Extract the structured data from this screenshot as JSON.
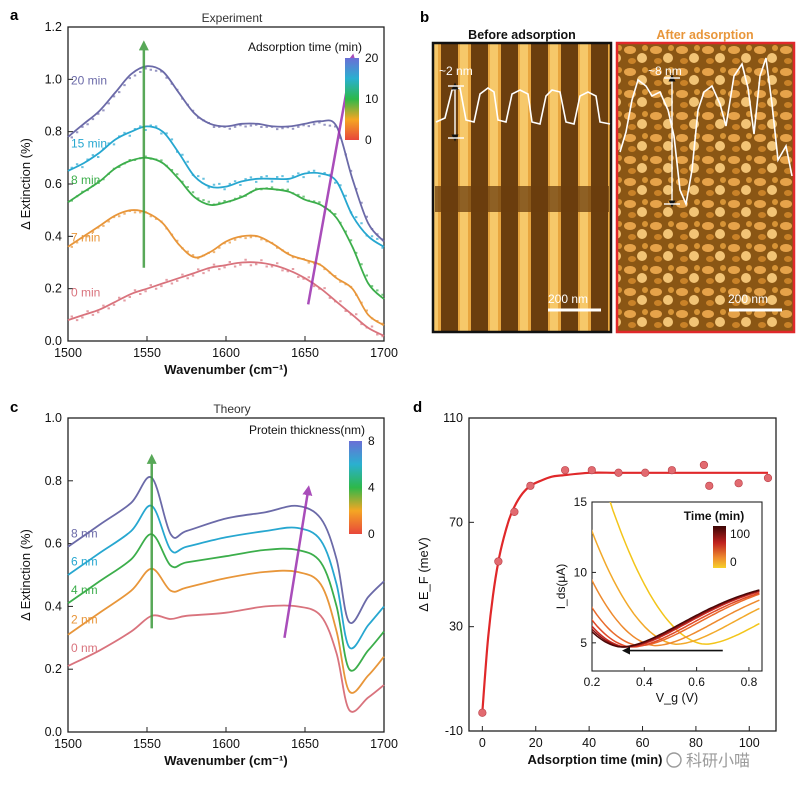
{
  "panels": {
    "a": "a",
    "b": "b",
    "c": "c",
    "d": "d"
  },
  "watermark": "科研小喵",
  "chart_data": [
    {
      "id": "a",
      "type": "line",
      "title": "Experiment",
      "xlabel": "Wavenumber (cm⁻¹)",
      "ylabel": "Δ Extinction (%)",
      "xlim": [
        1500,
        1700
      ],
      "ylim": [
        0,
        1.2
      ],
      "xticks": [
        1500,
        1550,
        1600,
        1650,
        1700
      ],
      "yticks": [
        0.0,
        0.2,
        0.4,
        0.6,
        0.8,
        1.0,
        1.2
      ],
      "colorbar": {
        "title": "Adsorption time (min)",
        "ticks": [
          "0",
          "10",
          "20"
        ],
        "colors": [
          "#e8473a",
          "#f5a623",
          "#2db84a",
          "#2ab0d0",
          "#6a6fd6"
        ]
      },
      "series": [
        {
          "name": "0 min",
          "color": "#d9737d",
          "label_y": 0.17,
          "x": [
            1500,
            1510,
            1520,
            1530,
            1540,
            1550,
            1560,
            1570,
            1580,
            1590,
            1600,
            1610,
            1620,
            1630,
            1640,
            1650,
            1660,
            1670,
            1680,
            1690,
            1700
          ],
          "y": [
            0.08,
            0.1,
            0.12,
            0.15,
            0.18,
            0.2,
            0.22,
            0.24,
            0.26,
            0.28,
            0.29,
            0.3,
            0.3,
            0.29,
            0.27,
            0.24,
            0.2,
            0.15,
            0.1,
            0.05,
            0.02
          ]
        },
        {
          "name": "7 min",
          "color": "#e8963a",
          "label_y": 0.38,
          "x": [
            1500,
            1510,
            1520,
            1530,
            1540,
            1550,
            1560,
            1570,
            1580,
            1590,
            1600,
            1610,
            1620,
            1630,
            1640,
            1650,
            1660,
            1670,
            1680,
            1690,
            1700
          ],
          "y": [
            0.36,
            0.4,
            0.44,
            0.48,
            0.5,
            0.49,
            0.45,
            0.37,
            0.32,
            0.34,
            0.38,
            0.4,
            0.4,
            0.37,
            0.33,
            0.31,
            0.29,
            0.24,
            0.2,
            0.1,
            0.06
          ]
        },
        {
          "name": "8 min",
          "color": "#3cae4b",
          "label_y": 0.6,
          "x": [
            1500,
            1510,
            1520,
            1530,
            1540,
            1550,
            1560,
            1570,
            1580,
            1590,
            1600,
            1610,
            1620,
            1630,
            1640,
            1650,
            1660,
            1670,
            1680,
            1690,
            1700
          ],
          "y": [
            0.53,
            0.57,
            0.61,
            0.66,
            0.69,
            0.7,
            0.68,
            0.62,
            0.55,
            0.52,
            0.53,
            0.55,
            0.58,
            0.58,
            0.57,
            0.54,
            0.52,
            0.47,
            0.36,
            0.22,
            0.16
          ]
        },
        {
          "name": "15 min",
          "color": "#27a7d0",
          "label_y": 0.74,
          "x": [
            1500,
            1510,
            1520,
            1530,
            1540,
            1550,
            1560,
            1570,
            1580,
            1590,
            1600,
            1610,
            1620,
            1630,
            1640,
            1650,
            1660,
            1670,
            1680,
            1690,
            1700
          ],
          "y": [
            0.65,
            0.68,
            0.72,
            0.77,
            0.8,
            0.82,
            0.8,
            0.72,
            0.63,
            0.59,
            0.59,
            0.61,
            0.62,
            0.62,
            0.62,
            0.64,
            0.64,
            0.61,
            0.48,
            0.4,
            0.36
          ]
        },
        {
          "name": "20 min",
          "color": "#6b6aa8",
          "label_y": 0.98,
          "x": [
            1500,
            1510,
            1520,
            1530,
            1540,
            1550,
            1560,
            1570,
            1580,
            1590,
            1600,
            1610,
            1620,
            1630,
            1640,
            1650,
            1660,
            1670,
            1680,
            1690,
            1700
          ],
          "y": [
            0.78,
            0.83,
            0.88,
            0.95,
            1.02,
            1.05,
            1.03,
            0.95,
            0.87,
            0.83,
            0.82,
            0.83,
            0.83,
            0.82,
            0.82,
            0.83,
            0.84,
            0.82,
            0.62,
            0.45,
            0.38
          ]
        }
      ],
      "annotations": {
        "arrow_green": [
          1548,
          0.28,
          1548,
          1.13
        ],
        "arrow_purple": [
          1652,
          0.14,
          1680,
          1.08
        ]
      }
    },
    {
      "id": "b",
      "type": "image",
      "panels": [
        {
          "title": "Before adsorption",
          "scale": "200 nm",
          "height_label": "~2 nm",
          "border": "#111111",
          "title_color": "#111111"
        },
        {
          "title": "After adsorption",
          "scale": "200 nm",
          "height_label": "~8 nm",
          "border": "#e0282a",
          "title_color": "#e8963a"
        }
      ]
    },
    {
      "id": "c",
      "type": "line",
      "title": "Theory",
      "xlabel": "Wavenumber (cm⁻¹)",
      "ylabel": "Δ Extinction (%)",
      "xlim": [
        1500,
        1700
      ],
      "ylim": [
        0,
        1.0
      ],
      "xticks": [
        1500,
        1550,
        1600,
        1650,
        1700
      ],
      "yticks": [
        0.0,
        0.2,
        0.4,
        0.6,
        0.8,
        1.0
      ],
      "colorbar": {
        "title": "Protein thickness(nm)",
        "ticks": [
          "0",
          "4",
          "8"
        ],
        "colors": [
          "#e8473a",
          "#f5a623",
          "#2db84a",
          "#2ab0d0",
          "#6a6fd6"
        ]
      },
      "series": [
        {
          "name": "0 nm",
          "color": "#d9737d",
          "label_y": 0.255,
          "x": [
            1500,
            1520,
            1540,
            1553,
            1565,
            1575,
            1600,
            1625,
            1645,
            1660,
            1670,
            1678,
            1690,
            1700
          ],
          "y": [
            0.21,
            0.26,
            0.32,
            0.37,
            0.36,
            0.37,
            0.38,
            0.4,
            0.4,
            0.37,
            0.25,
            0.07,
            0.11,
            0.15
          ]
        },
        {
          "name": "2 nm",
          "color": "#e8963a",
          "label_y": 0.345,
          "x": [
            1500,
            1520,
            1540,
            1553,
            1565,
            1575,
            1600,
            1625,
            1645,
            1660,
            1670,
            1678,
            1690,
            1700
          ],
          "y": [
            0.31,
            0.38,
            0.45,
            0.52,
            0.45,
            0.46,
            0.49,
            0.51,
            0.51,
            0.47,
            0.32,
            0.13,
            0.18,
            0.24
          ]
        },
        {
          "name": "4 nm",
          "color": "#3cae4b",
          "label_y": 0.44,
          "x": [
            1500,
            1520,
            1540,
            1553,
            1565,
            1575,
            1600,
            1625,
            1645,
            1660,
            1670,
            1678,
            1690,
            1700
          ],
          "y": [
            0.41,
            0.48,
            0.55,
            0.63,
            0.53,
            0.54,
            0.56,
            0.58,
            0.58,
            0.54,
            0.4,
            0.2,
            0.26,
            0.32
          ]
        },
        {
          "name": "6 nm",
          "color": "#27a7d0",
          "label_y": 0.53,
          "x": [
            1500,
            1520,
            1540,
            1553,
            1565,
            1575,
            1600,
            1625,
            1645,
            1660,
            1670,
            1678,
            1690,
            1700
          ],
          "y": [
            0.5,
            0.57,
            0.64,
            0.72,
            0.58,
            0.59,
            0.62,
            0.64,
            0.65,
            0.61,
            0.47,
            0.27,
            0.34,
            0.4
          ]
        },
        {
          "name": "8 nm",
          "color": "#6b6aa8",
          "label_y": 0.62,
          "x": [
            1500,
            1520,
            1540,
            1553,
            1565,
            1575,
            1600,
            1625,
            1645,
            1660,
            1670,
            1678,
            1690,
            1700
          ],
          "y": [
            0.59,
            0.66,
            0.73,
            0.81,
            0.63,
            0.64,
            0.68,
            0.7,
            0.72,
            0.68,
            0.55,
            0.35,
            0.43,
            0.48
          ]
        }
      ],
      "annotations": {
        "arrow_green": [
          1553,
          0.33,
          1553,
          0.87
        ],
        "arrow_purple": [
          1637,
          0.3,
          1652,
          0.77
        ]
      }
    },
    {
      "id": "d",
      "type": "scatter",
      "xlabel": "Adsorption time (min)",
      "ylabel": "Δ E_F (meV)",
      "xlim": [
        -5,
        110
      ],
      "ylim": [
        -10,
        110
      ],
      "xticks": [
        0,
        20,
        40,
        60,
        80,
        100
      ],
      "yticks": [
        -10,
        30,
        70,
        110
      ],
      "points": {
        "color": "#e26a70",
        "x": [
          0,
          6,
          12,
          18,
          31,
          41,
          51,
          61,
          71,
          83,
          85,
          96,
          107
        ],
        "y": [
          -3,
          55,
          74,
          84,
          90,
          90,
          89,
          89,
          90,
          92,
          84,
          85,
          87
        ]
      },
      "fit": {
        "color": "#e0282a",
        "x": [
          0,
          2,
          4,
          6,
          8,
          10,
          12,
          15,
          18,
          22,
          26,
          30,
          40,
          50,
          60,
          70,
          80,
          90,
          100,
          107
        ],
        "y": [
          -3,
          24,
          42,
          55,
          64,
          71,
          76,
          81,
          84,
          86,
          87.5,
          88,
          89,
          89,
          89,
          89,
          89,
          89,
          89,
          89
        ]
      },
      "inset": {
        "type": "line",
        "xlabel": "V_g (V)",
        "ylabel": "I_ds(μA)",
        "xlim": [
          0.2,
          0.85
        ],
        "ylim": [
          3,
          15
        ],
        "xticks": [
          0.2,
          0.4,
          0.6,
          0.8
        ],
        "yticks": [
          5,
          10,
          15
        ],
        "legend_title": "Time (min)",
        "legend_ticks": [
          "100",
          "0"
        ],
        "curves": [
          {
            "color": "#f3c51a",
            "vmin": 0.63,
            "imin": 4.9
          },
          {
            "color": "#f2a92a",
            "vmin": 0.52,
            "imin": 4.9
          },
          {
            "color": "#ee8a2e",
            "vmin": 0.44,
            "imin": 4.8
          },
          {
            "color": "#e96a2c",
            "vmin": 0.38,
            "imin": 4.8
          },
          {
            "color": "#e04a28",
            "vmin": 0.35,
            "imin": 4.7
          },
          {
            "color": "#c72a22",
            "vmin": 0.33,
            "imin": 4.7
          },
          {
            "color": "#8e1414",
            "vmin": 0.32,
            "imin": 4.7
          },
          {
            "color": "#4a0808",
            "vmin": 0.31,
            "imin": 4.7
          }
        ],
        "arrow": [
          0.7,
          4.0,
          0.33,
          4.0
        ]
      }
    }
  ]
}
